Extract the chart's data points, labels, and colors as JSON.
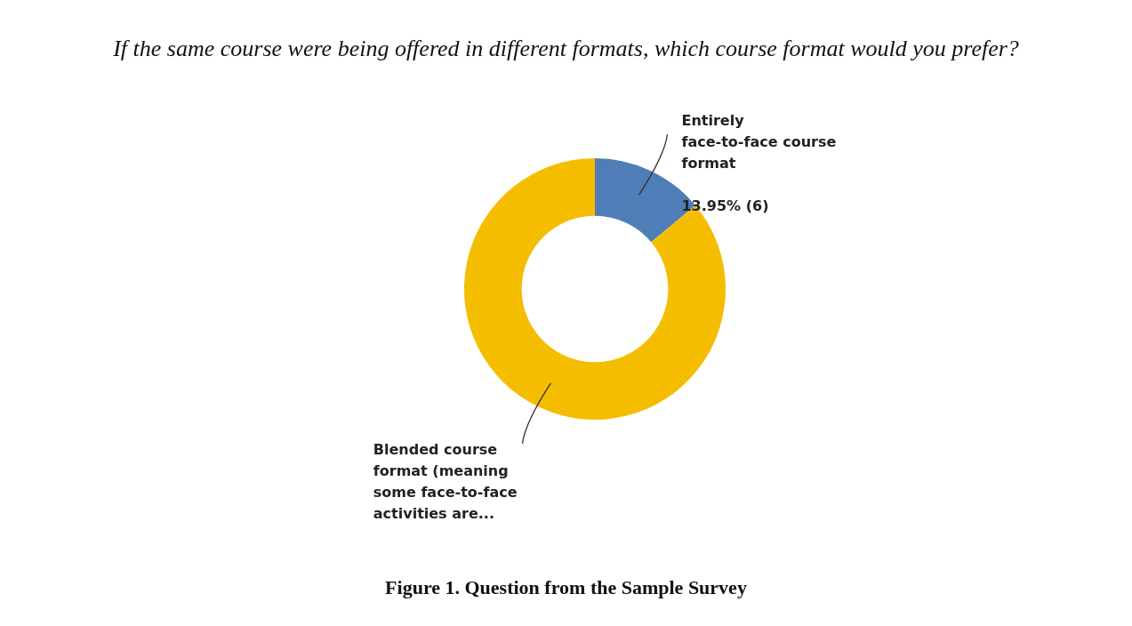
{
  "chart_data": {
    "type": "donut",
    "title": "If the same course were being offered in different formats, which course format would you prefer?",
    "categories": [
      "Entirely face-to-face course format",
      "Blended course format (meaning some face-to-face activities are..."
    ],
    "values": [
      13.95,
      86.05
    ],
    "colors": [
      "#4f7db8",
      "#f5bd00"
    ],
    "value_labels": [
      "13.95% (6)",
      null
    ],
    "annotations": [
      "Figure 1. Question from the Sample Survey"
    ]
  }
}
